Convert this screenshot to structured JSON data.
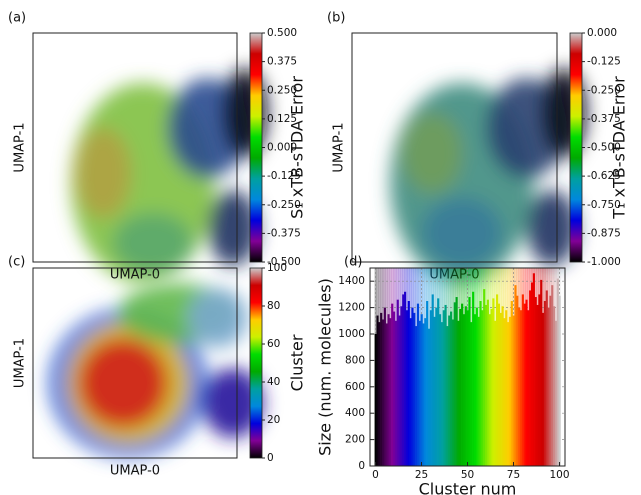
{
  "chart_data": [
    {
      "type": "scatter",
      "panel_label": "(a)",
      "xlabel": "UMAP-0",
      "ylabel": "UMAP-1",
      "colorbar": {
        "label": "S₁ xTB-sTDA Error",
        "lim": [
          -0.5,
          0.5
        ],
        "ticks": [
          {
            "value": 0.5,
            "label": "0.500"
          },
          {
            "value": 0.375,
            "label": "0.375"
          },
          {
            "value": 0.25,
            "label": "0.250"
          },
          {
            "value": 0.125,
            "label": "0.125"
          },
          {
            "value": 0,
            "label": "0.000"
          },
          {
            "value": -0.125,
            "label": "-0.125"
          },
          {
            "value": -0.25,
            "label": "-0.250"
          },
          {
            "value": -0.375,
            "label": "-0.375"
          },
          {
            "value": -0.5,
            "label": "-0.500"
          }
        ],
        "colormap": [
          "#000000",
          "#820096",
          "#0000dd",
          "#0088dd",
          "#00a0a0",
          "#00aa00",
          "#00dd00",
          "#ccf000",
          "#ffcc00",
          "#ff0000",
          "#cc0000",
          "#cccccc"
        ]
      }
    },
    {
      "type": "scatter",
      "panel_label": "(b)",
      "xlabel": "UMAP-0",
      "ylabel": "UMAP-1",
      "colorbar": {
        "label": "T₁ xTB-sTDA Error",
        "lim": [
          -1,
          0
        ],
        "ticks": [
          {
            "value": 0,
            "label": "0.000"
          },
          {
            "value": -0.125,
            "label": "-0.125"
          },
          {
            "value": -0.25,
            "label": "-0.250"
          },
          {
            "value": -0.375,
            "label": "-0.375"
          },
          {
            "value": -0.5,
            "label": "-0.500"
          },
          {
            "value": -0.625,
            "label": "-0.625"
          },
          {
            "value": -0.75,
            "label": "-0.750"
          },
          {
            "value": -0.875,
            "label": "-0.875"
          },
          {
            "value": -1,
            "label": "-1.000"
          }
        ],
        "colormap": [
          "#000000",
          "#820096",
          "#0000dd",
          "#0088dd",
          "#00a0a0",
          "#00aa00",
          "#00dd00",
          "#ccf000",
          "#ffcc00",
          "#ff0000",
          "#cc0000",
          "#cccccc"
        ]
      }
    },
    {
      "type": "scatter",
      "panel_label": "(c)",
      "xlabel": "UMAP-0",
      "ylabel": "UMAP-1",
      "colorbar": {
        "label": "Cluster",
        "lim": [
          0,
          100
        ],
        "ticks": [
          0,
          20,
          40,
          60,
          80,
          100
        ],
        "colormap": [
          "#000000",
          "#820096",
          "#0000dd",
          "#0088dd",
          "#00a0a0",
          "#00aa00",
          "#00dd00",
          "#ccf000",
          "#ffcc00",
          "#ff0000",
          "#cc0000",
          "#cccccc"
        ]
      }
    },
    {
      "type": "bar",
      "panel_label": "(d)",
      "xlabel": "Cluster num",
      "ylabel": "Size (num. molecules)",
      "x": [
        0,
        1,
        2,
        3,
        4,
        5,
        6,
        7,
        8,
        9,
        10,
        11,
        12,
        13,
        14,
        15,
        16,
        17,
        18,
        19,
        20,
        21,
        22,
        23,
        24,
        25,
        26,
        27,
        28,
        29,
        30,
        31,
        32,
        33,
        34,
        35,
        36,
        37,
        38,
        39,
        40,
        41,
        42,
        43,
        44,
        45,
        46,
        47,
        48,
        49,
        50,
        51,
        52,
        53,
        54,
        55,
        56,
        57,
        58,
        59,
        60,
        61,
        62,
        63,
        64,
        65,
        66,
        67,
        68,
        69,
        70,
        71,
        72,
        73,
        74,
        75,
        76,
        77,
        78,
        79,
        80,
        81,
        82,
        83,
        84,
        85,
        86,
        87,
        88,
        89,
        90,
        91,
        92,
        93,
        94,
        95,
        96,
        97,
        98,
        99,
        100
      ],
      "values": [
        1000,
        1140,
        1090,
        1160,
        1110,
        1200,
        1080,
        1150,
        1120,
        1230,
        1170,
        1100,
        1260,
        1140,
        1210,
        1300,
        1320,
        1180,
        1250,
        1120,
        1200,
        1160,
        1060,
        1230,
        1100,
        1150,
        1080,
        1120,
        1250,
        1040,
        1180,
        1300,
        1130,
        1200,
        1270,
        1150,
        1090,
        1180,
        1220,
        1060,
        1140,
        1170,
        1110,
        1240,
        1280,
        1100,
        1190,
        1230,
        1150,
        1210,
        1180,
        1280,
        1090,
        1320,
        1150,
        1200,
        1130,
        1250,
        1180,
        1340,
        1220,
        1260,
        1150,
        1190,
        1270,
        1100,
        1300,
        1230,
        1160,
        1210,
        1120,
        1180,
        1090,
        1130,
        1250,
        1140,
        1370,
        1290,
        1200,
        1180,
        1300,
        1230,
        1260,
        1180,
        1330,
        1390,
        1460,
        1280,
        1220,
        1300,
        1410,
        1160,
        1250,
        1330,
        1200,
        1290,
        1370,
        1210,
        1100,
        1420,
        1290
      ],
      "xlim": [
        -3,
        103
      ],
      "xticks": [
        0,
        25,
        50,
        75,
        100
      ],
      "ylim": [
        0,
        1500
      ],
      "yticks": [
        0,
        200,
        400,
        600,
        800,
        1000,
        1200,
        1400
      ],
      "grid": true,
      "colormap": [
        "#000000",
        "#820096",
        "#0000dd",
        "#0088dd",
        "#00a0a0",
        "#00aa00",
        "#00dd00",
        "#ccf000",
        "#ffcc00",
        "#ff0000",
        "#cc0000",
        "#cccccc"
      ]
    }
  ]
}
